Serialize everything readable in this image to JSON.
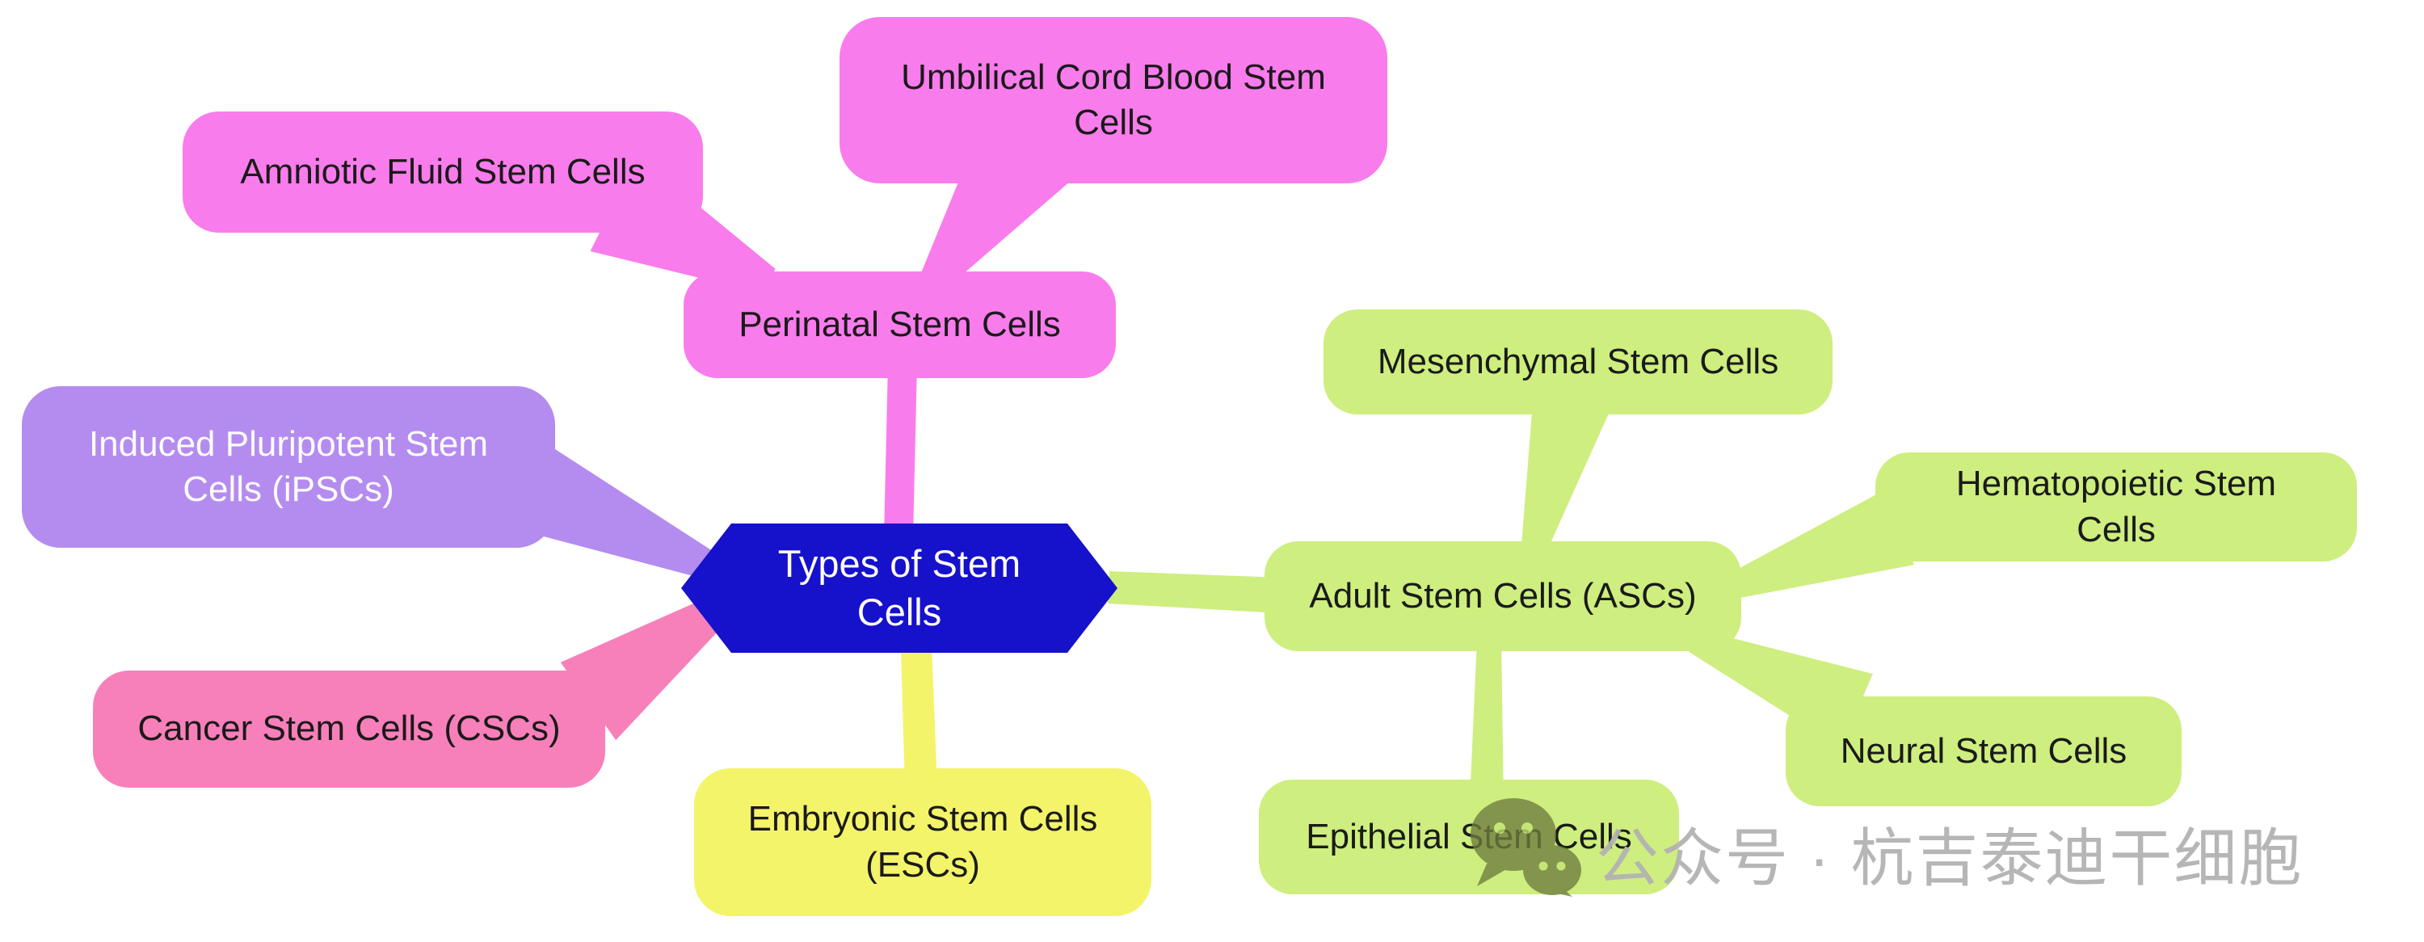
{
  "diagram": {
    "type": "mindmap",
    "root": {
      "label": "Types of Stem Cells"
    },
    "nodes": {
      "perinatal": {
        "label": "Perinatal Stem Cells"
      },
      "amniotic": {
        "label": "Amniotic Fluid Stem Cells"
      },
      "umbilical": {
        "label": "Umbilical Cord Blood Stem Cells"
      },
      "ipsc": {
        "label": "Induced Pluripotent Stem Cells (iPSCs)"
      },
      "cancer": {
        "label": "Cancer Stem Cells (CSCs)"
      },
      "embryonic": {
        "label": "Embryonic Stem Cells (ESCs)"
      },
      "adult": {
        "label": "Adult Stem Cells (ASCs)"
      },
      "mesenchymal": {
        "label": "Mesenchymal Stem Cells"
      },
      "hematopoietic": {
        "label": "Hematopoietic Stem Cells"
      },
      "neural": {
        "label": "Neural Stem Cells"
      },
      "epithelial": {
        "label": "Epithelial Stem Cells"
      }
    },
    "relations": [
      {
        "parent": "Types of Stem Cells",
        "child": "Perinatal Stem Cells"
      },
      {
        "parent": "Perinatal Stem Cells",
        "child": "Amniotic Fluid Stem Cells"
      },
      {
        "parent": "Perinatal Stem Cells",
        "child": "Umbilical Cord Blood Stem Cells"
      },
      {
        "parent": "Types of Stem Cells",
        "child": "Induced Pluripotent Stem Cells (iPSCs)"
      },
      {
        "parent": "Types of Stem Cells",
        "child": "Cancer Stem Cells (CSCs)"
      },
      {
        "parent": "Types of Stem Cells",
        "child": "Embryonic Stem Cells (ESCs)"
      },
      {
        "parent": "Types of Stem Cells",
        "child": "Adult Stem Cells (ASCs)"
      },
      {
        "parent": "Adult Stem Cells (ASCs)",
        "child": "Mesenchymal Stem Cells"
      },
      {
        "parent": "Adult Stem Cells (ASCs)",
        "child": "Hematopoietic Stem Cells"
      },
      {
        "parent": "Adult Stem Cells (ASCs)",
        "child": "Neural Stem Cells"
      },
      {
        "parent": "Adult Stem Cells (ASCs)",
        "child": "Epithelial Stem Cells"
      }
    ],
    "colors": {
      "pink": "#F97CEC",
      "purple": "#B48CEF",
      "rose": "#F780BA",
      "yellow": "#F4F46A",
      "green": "#CEEE7F",
      "blue": "#1611CB",
      "text_dark": "#1A1A1A",
      "text_light": "#FCFCFC"
    }
  },
  "watermark": {
    "text": "公众号 · 杭吉泰迪干细胞",
    "icon": "wechat-icon",
    "text_color": "#B3B3B3",
    "icon_color": "#6F7D3E",
    "icon_eye_color": "#C3E476"
  }
}
